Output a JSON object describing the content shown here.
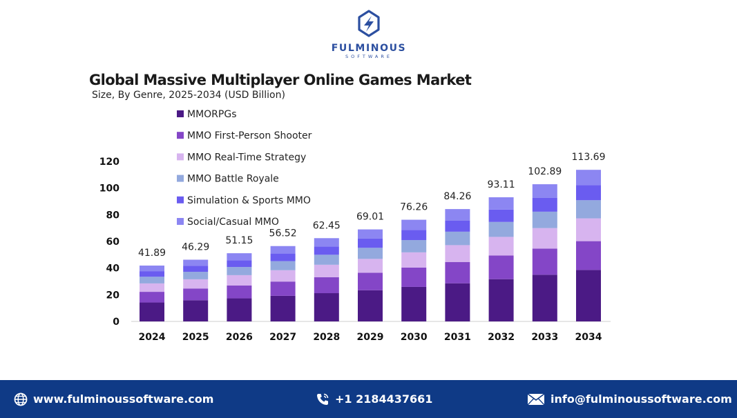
{
  "brand": {
    "name": "FULMINOUS",
    "tagline": "SOFTWARE",
    "accent": "#2c4fa0"
  },
  "chart_data": {
    "type": "bar",
    "stacked": true,
    "title": "Global Massive Multiplayer Online Games Market",
    "subtitle": "Size, By Genre, 2025-2034 (USD Billion)",
    "xlabel": "",
    "ylabel": "",
    "ylim": [
      0,
      120
    ],
    "yticks": [
      0,
      20,
      40,
      60,
      80,
      100,
      120
    ],
    "grid": false,
    "legend_position": "top-left",
    "categories": [
      "2024",
      "2025",
      "2026",
      "2027",
      "2028",
      "2029",
      "2030",
      "2031",
      "2032",
      "2033",
      "2034"
    ],
    "totals": [
      41.89,
      46.29,
      51.15,
      56.52,
      62.45,
      69.01,
      76.26,
      84.26,
      93.11,
      102.89,
      113.69
    ],
    "total_labels": [
      "41.89",
      "46.29",
      "51.15",
      "56.52",
      "62.45",
      "69.01",
      "76.26",
      "84.26",
      "93.11",
      "102.89",
      "113.69"
    ],
    "series": [
      {
        "name": "MMORPGs",
        "color": "#4b1a85",
        "values": [
          14.2,
          15.9,
          17.3,
          19.2,
          21.2,
          23.4,
          25.9,
          28.6,
          31.7,
          35.0,
          38.6
        ]
      },
      {
        "name": "MMO First-Person Shooter",
        "color": "#8446c7",
        "values": [
          8.0,
          8.8,
          9.7,
          10.7,
          11.9,
          13.1,
          14.5,
          16.0,
          17.7,
          19.6,
          21.6
        ]
      },
      {
        "name": "MMO Real-Time Strategy",
        "color": "#d7b4ef",
        "values": [
          6.3,
          6.9,
          7.7,
          8.5,
          9.4,
          10.4,
          11.4,
          12.6,
          14.0,
          15.4,
          17.1
        ]
      },
      {
        "name": "MMO Battle Royale",
        "color": "#93a9de",
        "values": [
          5.0,
          5.6,
          6.1,
          6.8,
          7.5,
          8.3,
          9.2,
          10.1,
          11.2,
          12.3,
          13.6
        ]
      },
      {
        "name": "Simulation & Sports MMO",
        "color": "#6a5cf0",
        "values": [
          4.2,
          4.6,
          5.1,
          5.7,
          6.2,
          6.9,
          7.6,
          8.4,
          9.3,
          10.3,
          11.4
        ]
      },
      {
        "name": "Social/Casual MMO",
        "color": "#8c86f2",
        "values": [
          4.19,
          4.49,
          5.25,
          5.62,
          6.25,
          6.91,
          7.66,
          8.56,
          9.21,
          10.29,
          11.39
        ]
      }
    ]
  },
  "footer": {
    "website": "www.fulminoussoftware.com",
    "phone": "+1 2184437661",
    "email": "info@fulminoussoftware.com",
    "background": "#0f3a86"
  }
}
